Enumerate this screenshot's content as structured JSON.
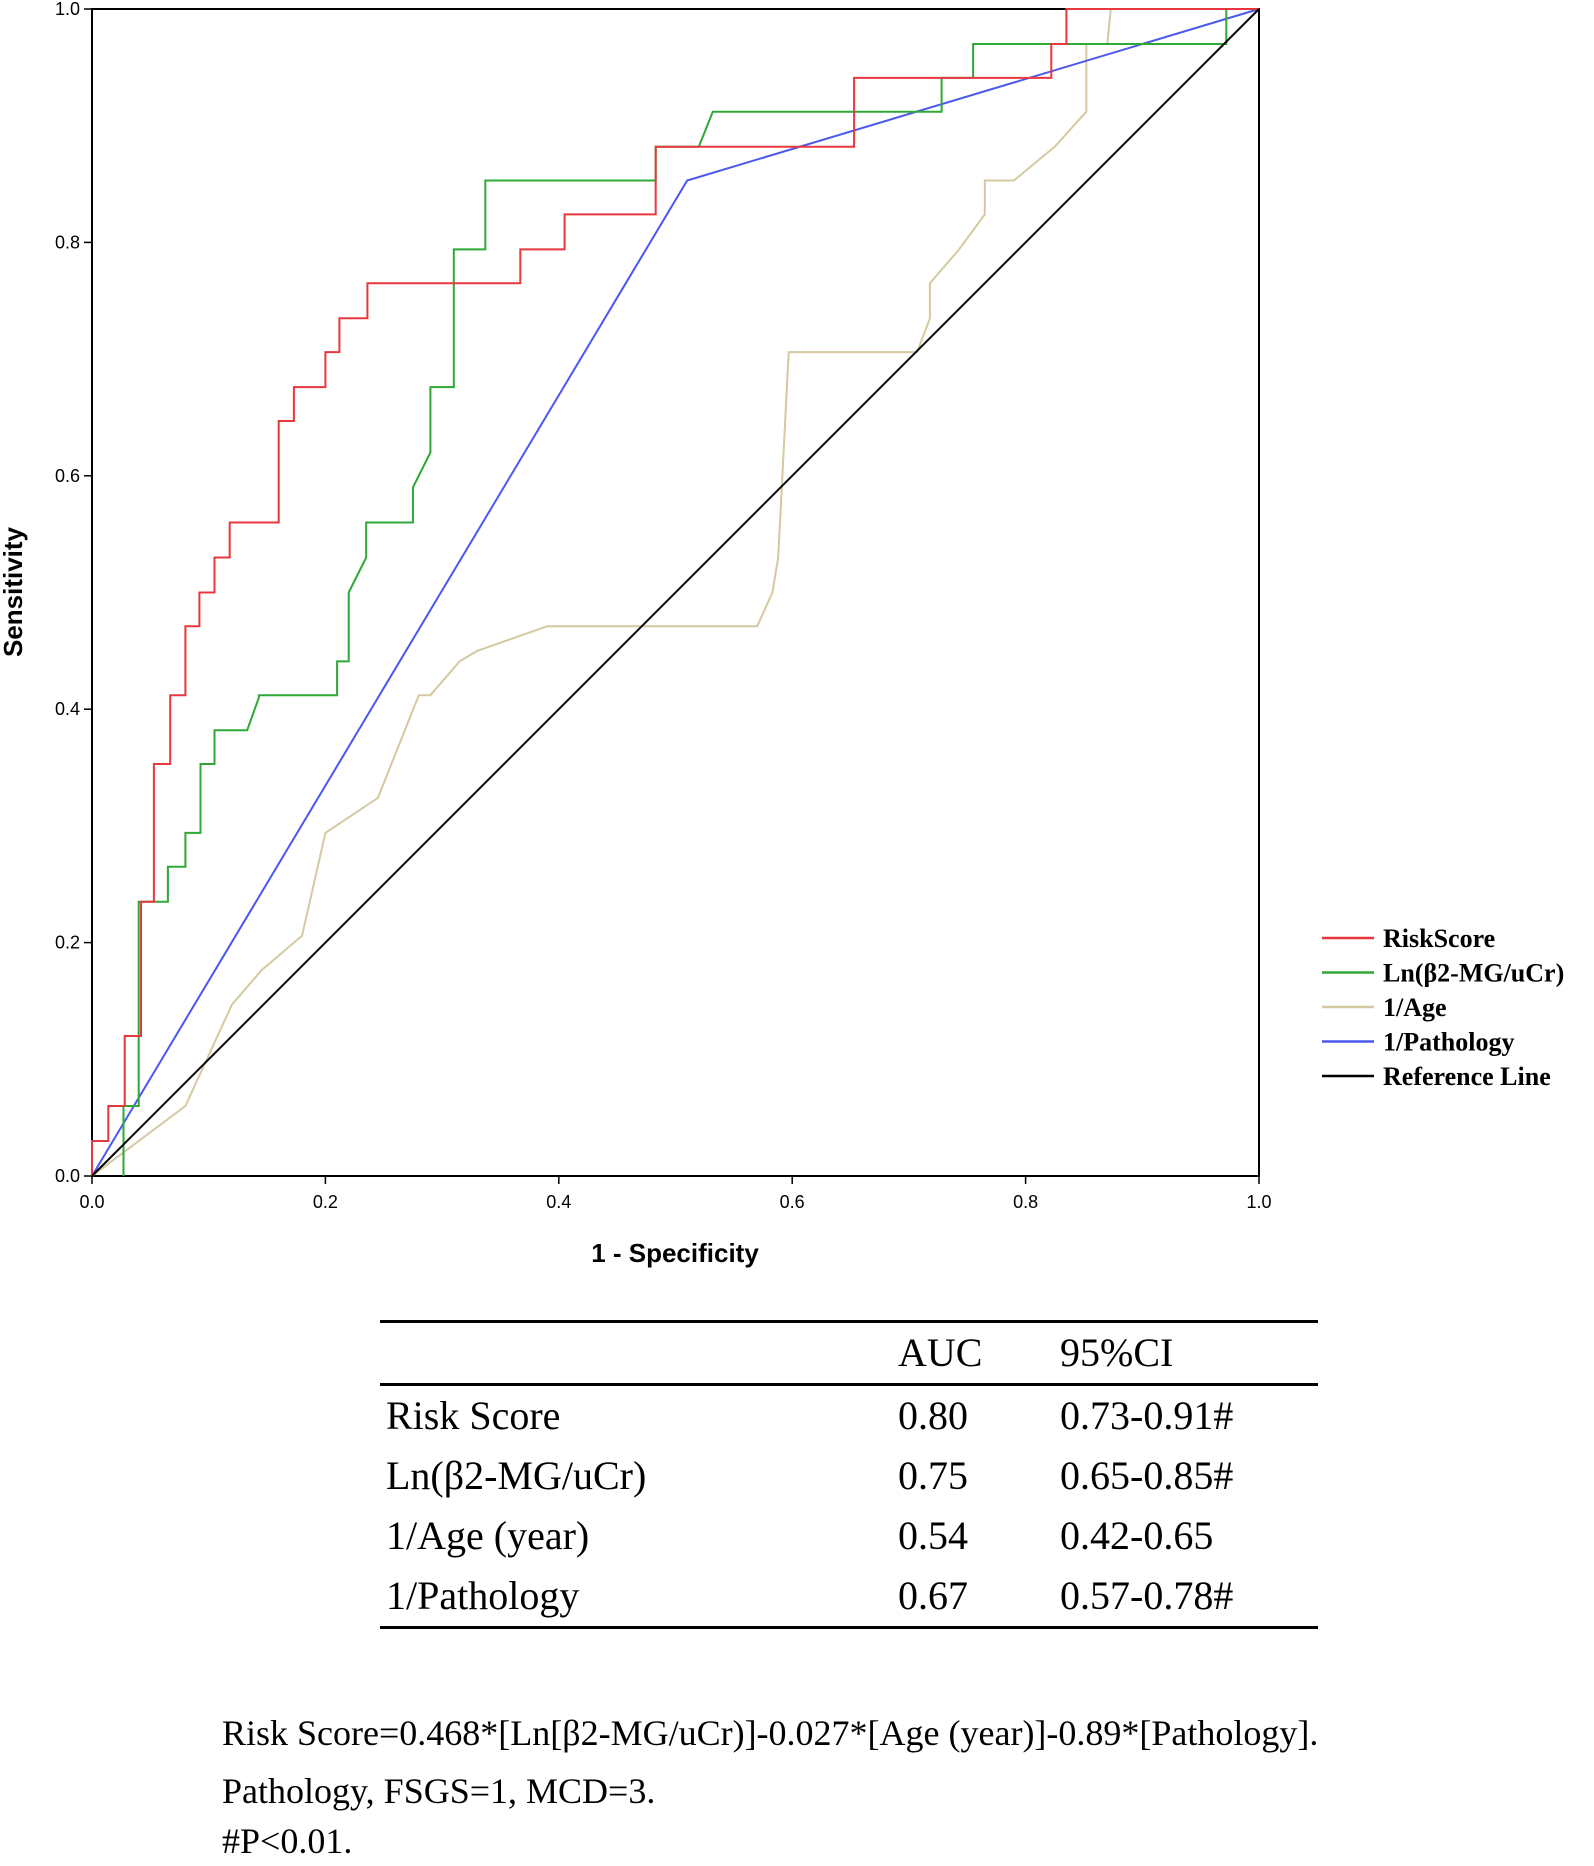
{
  "chart_data": {
    "type": "line",
    "title": "",
    "xlabel": "1 - Specificity",
    "ylabel": "Sensitivity",
    "xlim": [
      0,
      1
    ],
    "ylim": [
      0,
      1
    ],
    "x_ticks": [
      "0.0",
      "0.2",
      "0.4",
      "0.6",
      "0.8",
      "1.0"
    ],
    "y_ticks": [
      "0.0",
      "0.2",
      "0.4",
      "0.6",
      "0.8",
      "1.0"
    ],
    "legend_position": "right",
    "series": [
      {
        "name": "RiskScore",
        "color": "#e8383d",
        "x": [
          0,
          0,
          0.014,
          0.014,
          0.028,
          0.028,
          0.042,
          0.042,
          0.053,
          0.053,
          0.067,
          0.067,
          0.08,
          0.08,
          0.092,
          0.092,
          0.105,
          0.105,
          0.118,
          0.118,
          0.16,
          0.16,
          0.173,
          0.173,
          0.2,
          0.2,
          0.212,
          0.212,
          0.236,
          0.236,
          0.367,
          0.367,
          0.405,
          0.405,
          0.483,
          0.483,
          0.653,
          0.653,
          0.822,
          0.822,
          0.835,
          0.835,
          1.0
        ],
        "y": [
          0,
          0.03,
          0.03,
          0.06,
          0.06,
          0.12,
          0.12,
          0.235,
          0.235,
          0.353,
          0.353,
          0.412,
          0.412,
          0.471,
          0.471,
          0.5,
          0.5,
          0.53,
          0.53,
          0.56,
          0.56,
          0.647,
          0.647,
          0.676,
          0.676,
          0.706,
          0.706,
          0.735,
          0.735,
          0.765,
          0.765,
          0.794,
          0.794,
          0.824,
          0.824,
          0.882,
          0.882,
          0.941,
          0.941,
          0.97,
          0.97,
          1.0,
          1.0
        ]
      },
      {
        "name": "Ln(β2-MG/uCr)",
        "color": "#2ea836",
        "x": [
          0.027,
          0.027,
          0.04,
          0.04,
          0.065,
          0.065,
          0.08,
          0.08,
          0.093,
          0.093,
          0.105,
          0.105,
          0.133,
          0.143,
          0.143,
          0.21,
          0.21,
          0.22,
          0.22,
          0.235,
          0.235,
          0.275,
          0.275,
          0.29,
          0.29,
          0.31,
          0.31,
          0.337,
          0.337,
          0.483,
          0.483,
          0.52,
          0.532,
          0.728,
          0.728,
          0.755,
          0.755,
          0.972,
          0.972,
          1.0
        ],
        "y": [
          0,
          0.06,
          0.06,
          0.235,
          0.235,
          0.265,
          0.265,
          0.294,
          0.294,
          0.353,
          0.353,
          0.382,
          0.382,
          0.41,
          0.412,
          0.412,
          0.441,
          0.441,
          0.5,
          0.53,
          0.56,
          0.56,
          0.59,
          0.62,
          0.676,
          0.676,
          0.794,
          0.794,
          0.853,
          0.853,
          0.882,
          0.882,
          0.912,
          0.912,
          0.941,
          0.941,
          0.97,
          0.97,
          1.0,
          1.0
        ]
      },
      {
        "name": "1/Age",
        "color": "#d4c9a0",
        "x": [
          0,
          0.04,
          0.08,
          0.12,
          0.145,
          0.18,
          0.2,
          0.245,
          0.28,
          0.29,
          0.315,
          0.33,
          0.39,
          0.57,
          0.583,
          0.588,
          0.597,
          0.624,
          0.707,
          0.718,
          0.718,
          0.743,
          0.765,
          0.765,
          0.79,
          0.79,
          0.825,
          0.852,
          0.852,
          0.87,
          0.873,
          0.87,
          0.88,
          0.89,
          1.0
        ],
        "y": [
          0,
          0.03,
          0.06,
          0.147,
          0.176,
          0.206,
          0.294,
          0.324,
          0.412,
          0.412,
          0.441,
          0.45,
          0.471,
          0.471,
          0.5,
          0.53,
          0.706,
          0.706,
          0.706,
          0.735,
          0.765,
          0.794,
          0.824,
          0.853,
          0.853,
          0.853,
          0.882,
          0.912,
          0.97,
          0.97,
          1.0,
          1.0,
          1.0,
          1.0,
          1.0
        ]
      },
      {
        "name": "1/Pathology",
        "color": "#4a58f2",
        "x": [
          0,
          0.51,
          1.0
        ],
        "y": [
          0,
          0.853,
          1.0
        ]
      },
      {
        "name": "Reference Line",
        "color": "#000000",
        "x": [
          0,
          1
        ],
        "y": [
          0,
          1
        ]
      }
    ]
  },
  "table": {
    "header": {
      "label": "",
      "auc": "AUC",
      "ci": "95%CI"
    },
    "rows": [
      {
        "label": "Risk Score",
        "auc": "0.80",
        "ci": "0.73-0.91#"
      },
      {
        "label": "Ln(β2-MG/uCr)",
        "auc": "0.75",
        "ci": "0.65-0.85#"
      },
      {
        "label": "1/Age (year)",
        "auc": "0.54",
        "ci": "0.42-0.65"
      },
      {
        "label": "1/Pathology",
        "auc": "0.67",
        "ci": "0.57-0.78#"
      }
    ]
  },
  "notes": {
    "formula": "Risk Score=0.468*[Ln[β2-MG/uCr)]-0.027*[Age (year)]-0.89*[Pathology].",
    "pathology": "Pathology, FSGS=1, MCD=3.",
    "p_value": "#P<0.01."
  }
}
